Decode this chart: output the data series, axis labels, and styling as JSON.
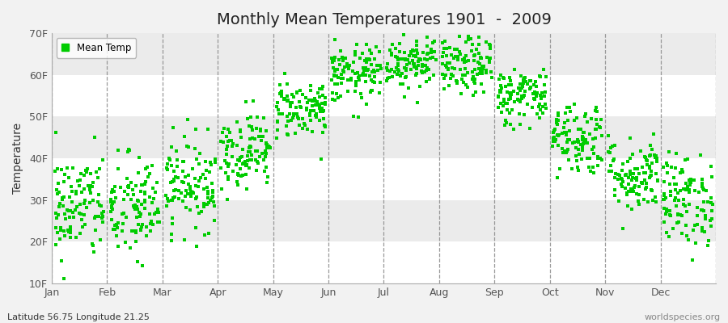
{
  "title": "Monthly Mean Temperatures 1901  -  2009",
  "ylabel": "Temperature",
  "ylim": [
    10,
    70
  ],
  "yticks": [
    10,
    20,
    30,
    40,
    50,
    60,
    70
  ],
  "ytick_labels": [
    "10F",
    "20F",
    "30F",
    "40F",
    "50F",
    "60F",
    "70F"
  ],
  "months": [
    "Jan",
    "Feb",
    "Mar",
    "Apr",
    "May",
    "Jun",
    "Jul",
    "Aug",
    "Sep",
    "Oct",
    "Nov",
    "Dec"
  ],
  "dot_color": "#00cc00",
  "legend_label": "Mean Temp",
  "bottom_left": "Latitude 56.75 Longitude 21.25",
  "bottom_right": "worldspecies.org",
  "bg_color": "#f2f2f2",
  "plot_bg": "#ffffff",
  "band_colors_h": [
    "#ffffff",
    "#ebebeb"
  ],
  "title_fontsize": 14,
  "axis_label_fontsize": 10,
  "tick_fontsize": 9,
  "n_years": 109,
  "monthly_means_f": [
    28.5,
    28.0,
    34.0,
    42.0,
    52.0,
    60.0,
    63.5,
    62.0,
    55.0,
    45.0,
    36.0,
    30.0
  ],
  "monthly_stds_f": [
    6.5,
    6.5,
    5.5,
    4.5,
    3.5,
    3.5,
    3.5,
    3.5,
    3.5,
    4.5,
    4.5,
    5.5
  ]
}
